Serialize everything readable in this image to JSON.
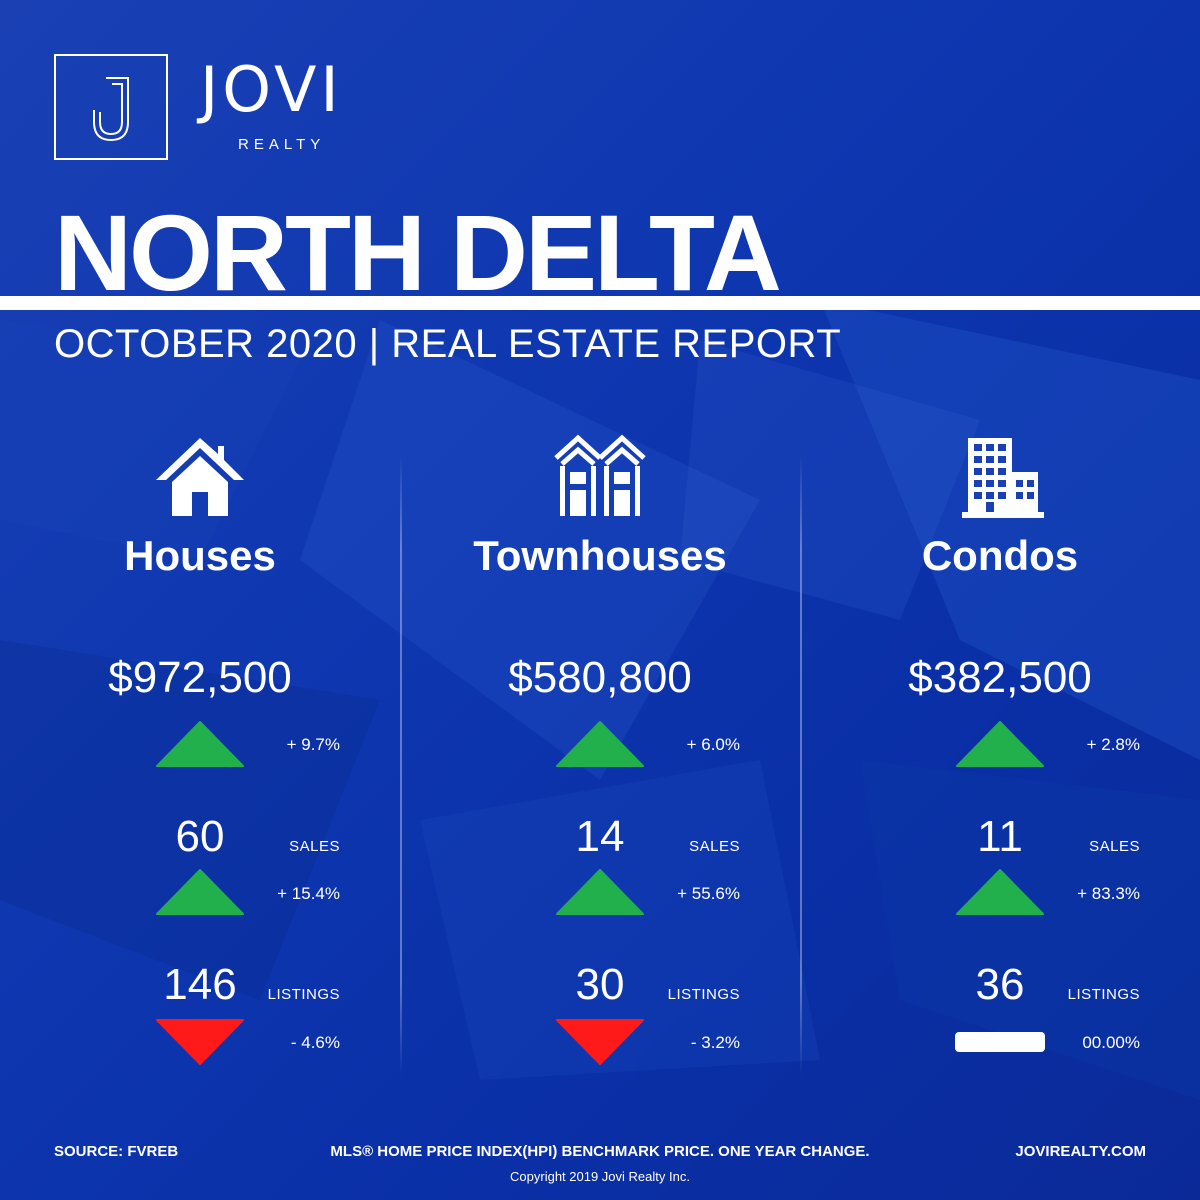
{
  "brand": {
    "logo_letter": "J",
    "name": "JOVI",
    "sub": "REALTY"
  },
  "title": "NORTH DELTA",
  "subtitle": "OCTOBER 2020 | REAL ESTATE REPORT",
  "colors": {
    "background": "#1a3fb0",
    "up": "#21b04b",
    "down": "#ff1a1a",
    "flat": "#ffffff"
  },
  "columns": [
    {
      "icon": "house-icon",
      "title": "Houses",
      "price": "$972,500",
      "price_change": {
        "direction": "up",
        "text": "+ 9.7%"
      },
      "sales": {
        "value": "60",
        "label": "SALES",
        "direction": "up",
        "change": "+ 15.4%"
      },
      "listings": {
        "value": "146",
        "label": "LISTINGS",
        "direction": "down",
        "change": "- 4.6%"
      }
    },
    {
      "icon": "townhouse-icon",
      "title": "Townhouses",
      "price": "$580,800",
      "price_change": {
        "direction": "up",
        "text": "+ 6.0%"
      },
      "sales": {
        "value": "14",
        "label": "SALES",
        "direction": "up",
        "change": "+ 55.6%"
      },
      "listings": {
        "value": "30",
        "label": "LISTINGS",
        "direction": "down",
        "change": "- 3.2%"
      }
    },
    {
      "icon": "condo-building-icon",
      "title": "Condos",
      "price": "$382,500",
      "price_change": {
        "direction": "up",
        "text": "+ 2.8%"
      },
      "sales": {
        "value": "11",
        "label": "SALES",
        "direction": "up",
        "change": "+ 83.3%"
      },
      "listings": {
        "value": "36",
        "label": "LISTINGS",
        "direction": "flat",
        "change": "00.00%"
      }
    }
  ],
  "footer": {
    "source": "SOURCE:  FVREB",
    "note": "MLS® HOME PRICE INDEX(HPI) BENCHMARK PRICE. ONE YEAR CHANGE.",
    "website": "JOVIREALTY.COM",
    "copyright": "Copyright 2019 Jovi Realty Inc."
  }
}
